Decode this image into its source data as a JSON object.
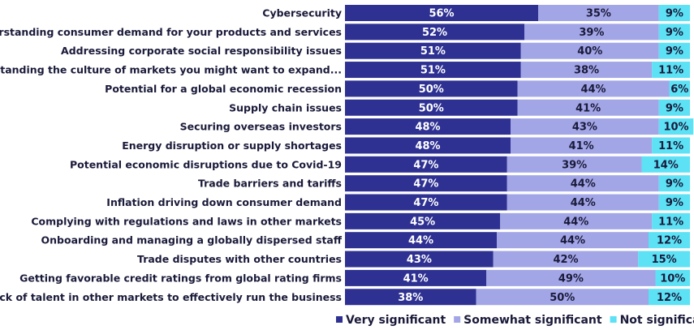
{
  "chart_data": {
    "type": "bar",
    "orientation": "horizontal",
    "stacked": true,
    "value_suffix": "%",
    "categories": [
      "Cybersecurity",
      "Understanding consumer demand for your products and services",
      "Addressing corporate social responsibility issues",
      "Understanding the culture of markets you might want to expand...",
      "Potential for a global economic recession",
      "Supply chain issues",
      "Securing overseas investors",
      "Energy disruption or supply shortages",
      "Potential economic disruptions due to Covid-19",
      "Trade barriers and tariffs",
      "Inflation driving down consumer demand",
      "Complying with regulations and laws in other markets",
      "Onboarding and managing a globally dispersed staff",
      "Trade disputes with other countries",
      "Getting favorable credit ratings from global rating firms",
      "Lack of talent in other markets to effectively run the business"
    ],
    "series": [
      {
        "name": "Very significant",
        "color": "#2e3192",
        "label_color": "#ffffff",
        "values": [
          56,
          52,
          51,
          51,
          50,
          50,
          48,
          48,
          47,
          47,
          47,
          45,
          44,
          43,
          41,
          38
        ]
      },
      {
        "name": "Somewhat significant",
        "color": "#a3a6e6",
        "label_color": "#1a1a3a",
        "values": [
          35,
          39,
          40,
          38,
          44,
          41,
          43,
          41,
          39,
          44,
          44,
          44,
          44,
          42,
          49,
          50
        ]
      },
      {
        "name": "Not significant",
        "color": "#5ce1f5",
        "label_color": "#1a1a3a",
        "values": [
          9,
          9,
          9,
          11,
          6,
          9,
          10,
          11,
          14,
          9,
          9,
          11,
          12,
          15,
          10,
          12
        ]
      }
    ],
    "xlim": [
      0,
      100
    ],
    "legend_position": "bottom-right",
    "grid": false
  }
}
